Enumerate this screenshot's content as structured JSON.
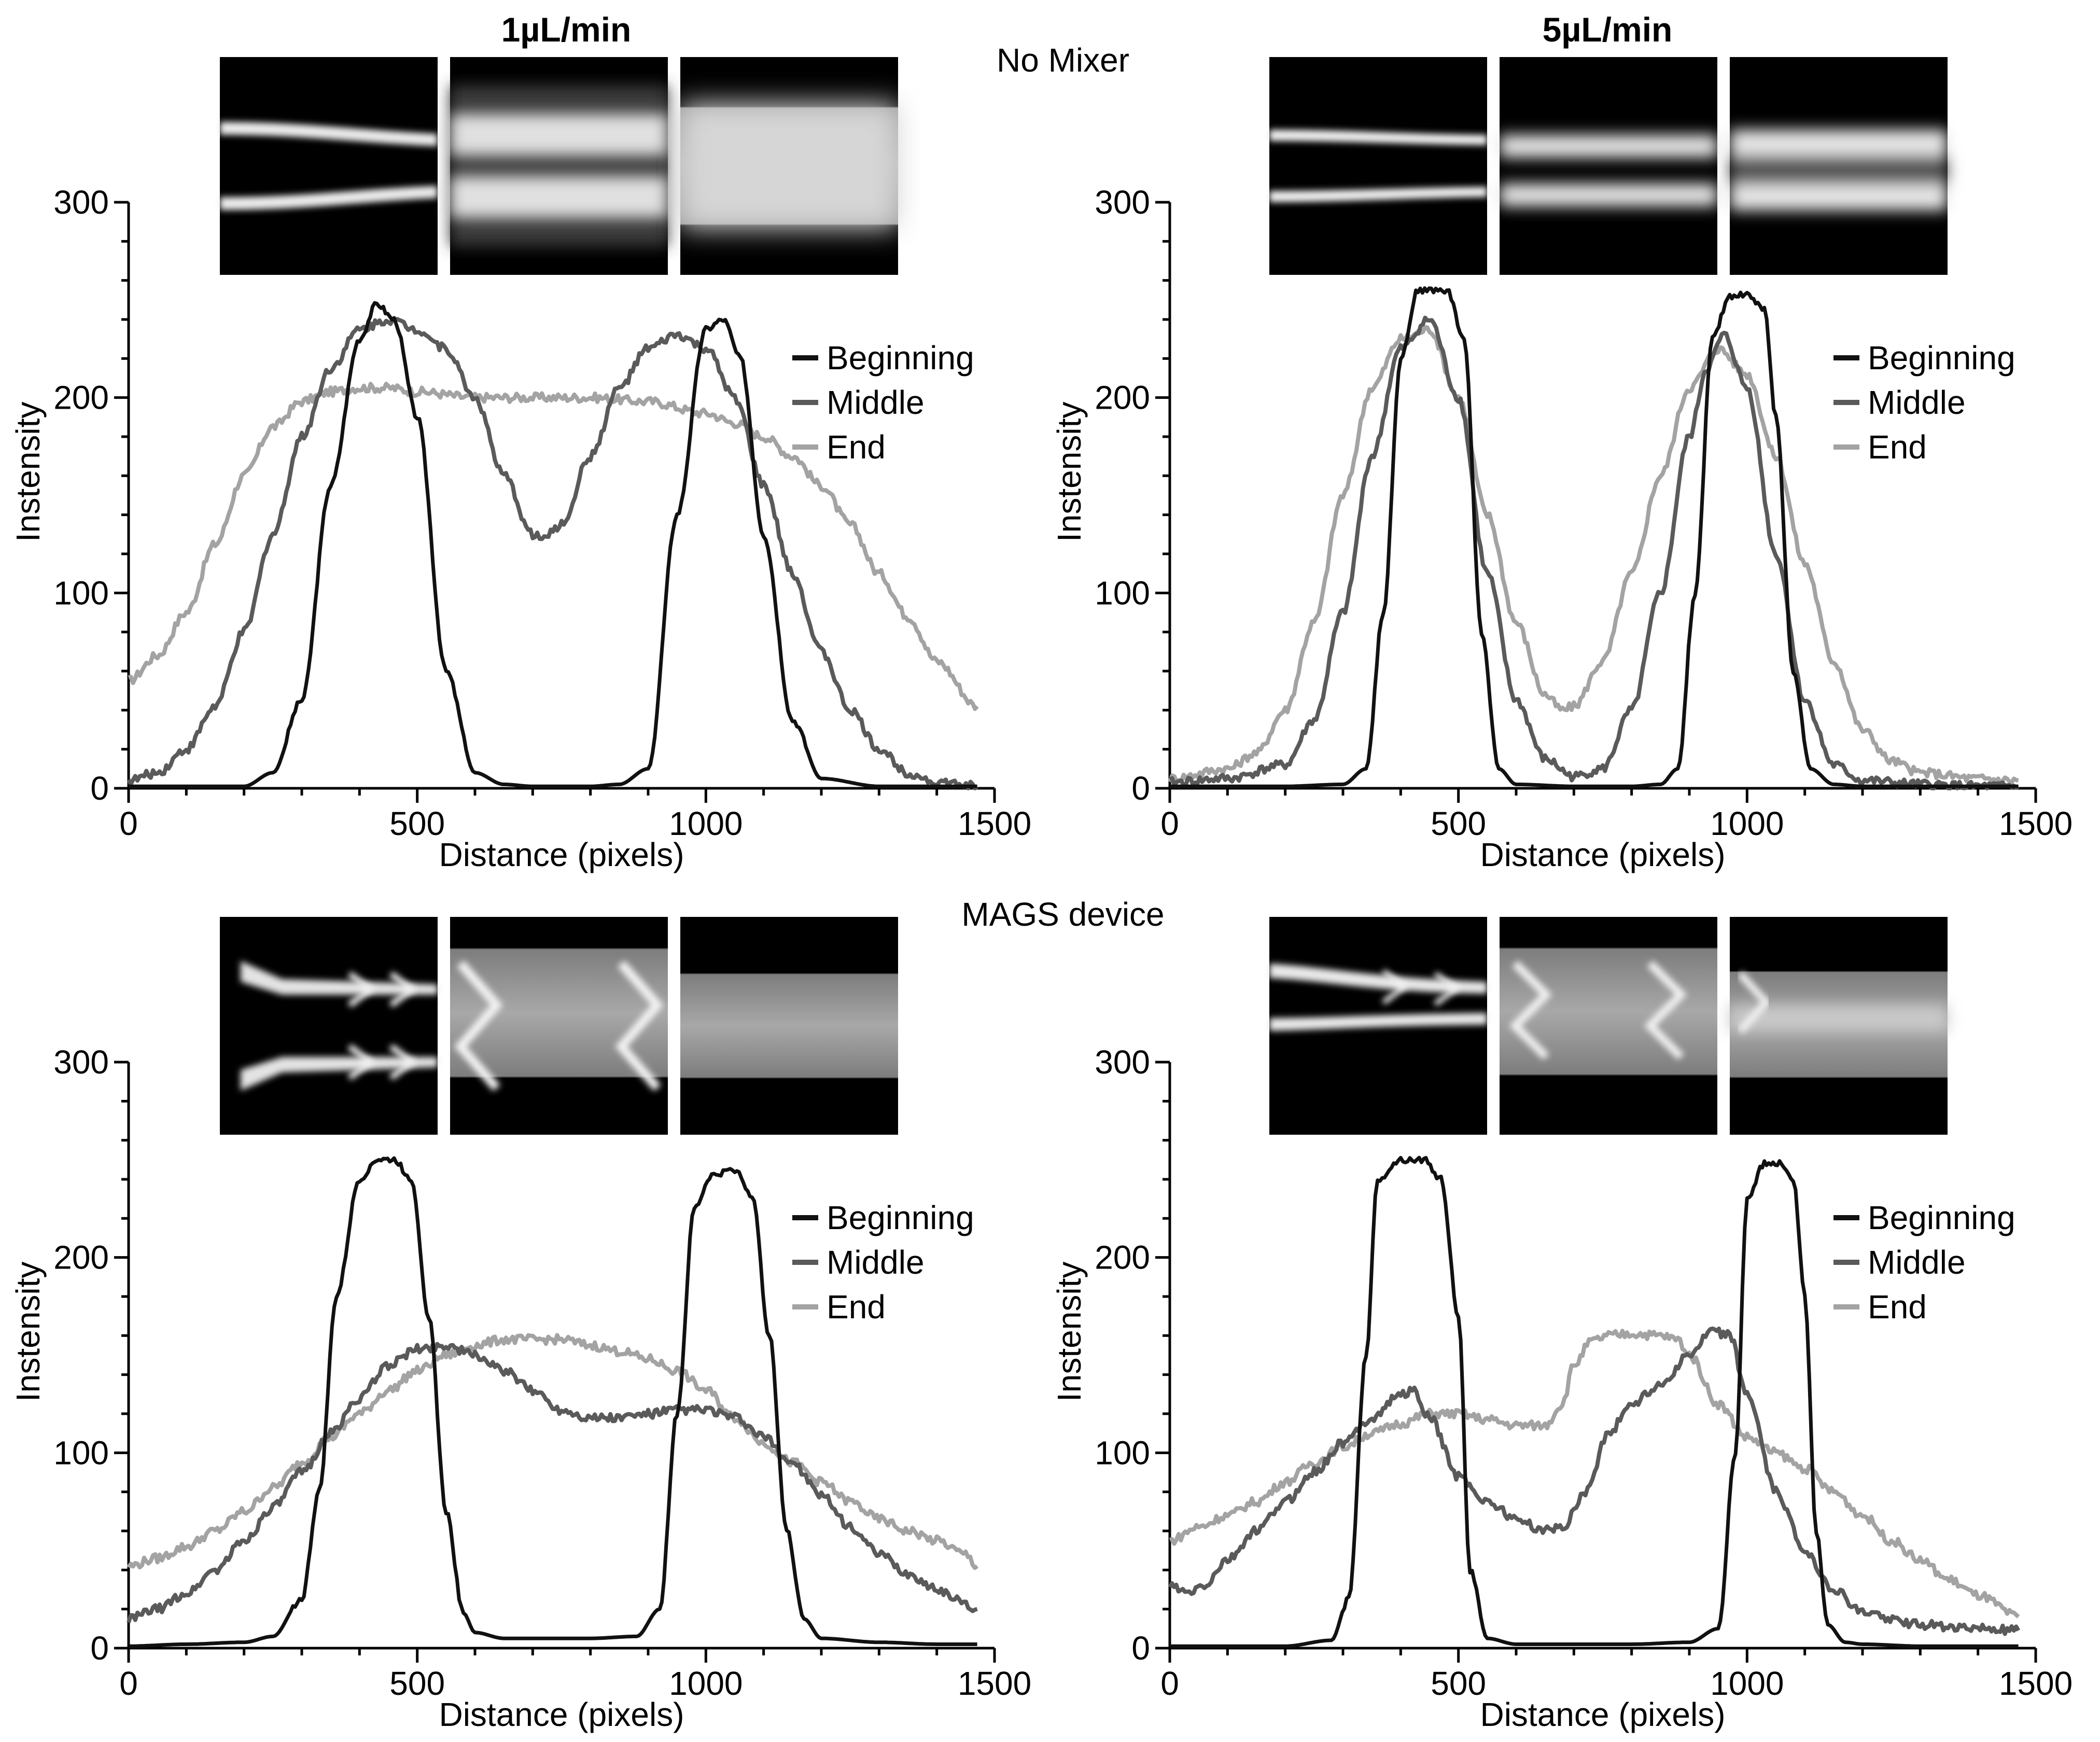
{
  "figure": {
    "col_titles": [
      "1µL/min",
      "5µL/min"
    ],
    "row_titles": [
      "No Mixer",
      "MAGS device"
    ],
    "colors": {
      "beginning": "#111111",
      "middle": "#5a5a5a",
      "end": "#a3a3a3",
      "background": "#ffffff"
    }
  },
  "chart_data": [
    {
      "type": "line",
      "panel": "top-left",
      "xlabel": "Distance (pixels)",
      "ylabel": "Instensity",
      "xlim": [
        0,
        1500
      ],
      "ylim": [
        0,
        300
      ],
      "xticks": [
        0,
        500,
        1000,
        1500
      ],
      "yticks": [
        0,
        100,
        200,
        300
      ],
      "legend_position": "upper-right",
      "insets": [
        "channel-image-beginning",
        "channel-image-middle",
        "channel-image-end"
      ],
      "series": [
        {
          "name": "Beginning",
          "color": "#111111",
          "x": [
            0,
            100,
            200,
            250,
            300,
            350,
            400,
            430,
            460,
            500,
            550,
            600,
            650,
            700,
            750,
            800,
            850,
            900,
            950,
            1000,
            1030,
            1060,
            1100,
            1150,
            1200,
            1300,
            1400,
            1470
          ],
          "y": [
            1,
            1,
            1,
            8,
            45,
            155,
            230,
            248,
            240,
            190,
            60,
            8,
            2,
            1,
            1,
            1,
            2,
            10,
            140,
            235,
            240,
            220,
            130,
            35,
            5,
            1,
            1,
            1
          ]
        },
        {
          "name": "Middle",
          "color": "#5a5a5a",
          "x": [
            0,
            50,
            100,
            150,
            200,
            250,
            300,
            350,
            400,
            450,
            500,
            550,
            600,
            650,
            700,
            720,
            750,
            800,
            850,
            900,
            950,
            1000,
            1050,
            1100,
            1150,
            1200,
            1250,
            1300,
            1350,
            1400,
            1470
          ],
          "y": [
            4,
            8,
            20,
            42,
            80,
            130,
            180,
            215,
            235,
            240,
            235,
            225,
            200,
            160,
            130,
            128,
            135,
            170,
            205,
            225,
            232,
            225,
            200,
            155,
            110,
            70,
            40,
            20,
            8,
            3,
            1
          ]
        },
        {
          "name": "End",
          "color": "#a3a3a3",
          "x": [
            0,
            50,
            100,
            150,
            200,
            250,
            300,
            350,
            400,
            450,
            500,
            600,
            700,
            800,
            900,
            1000,
            1050,
            1100,
            1150,
            1200,
            1250,
            1300,
            1350,
            1400,
            1470
          ],
          "y": [
            55,
            68,
            90,
            125,
            160,
            185,
            198,
            203,
            205,
            205,
            203,
            200,
            200,
            200,
            198,
            192,
            187,
            180,
            170,
            155,
            135,
            110,
            88,
            65,
            42
          ]
        }
      ]
    },
    {
      "type": "line",
      "panel": "top-right",
      "xlabel": "Distance (pixels)",
      "ylabel": "Instensity",
      "xlim": [
        0,
        1500
      ],
      "ylim": [
        0,
        300
      ],
      "xticks": [
        0,
        500,
        1000,
        1500
      ],
      "yticks": [
        0,
        100,
        200,
        300
      ],
      "legend_position": "upper-right",
      "insets": [
        "channel-image-beginning",
        "channel-image-middle",
        "channel-image-end"
      ],
      "series": [
        {
          "name": "Beginning",
          "color": "#111111",
          "x": [
            0,
            200,
            300,
            340,
            370,
            400,
            430,
            480,
            510,
            540,
            570,
            600,
            700,
            800,
            850,
            880,
            910,
            940,
            970,
            1000,
            1030,
            1050,
            1080,
            1110,
            1150,
            1200,
            1300,
            1470
          ],
          "y": [
            1,
            1,
            2,
            10,
            90,
            220,
            255,
            255,
            230,
            80,
            10,
            2,
            1,
            1,
            2,
            10,
            100,
            230,
            252,
            253,
            245,
            190,
            60,
            10,
            2,
            1,
            1,
            1
          ]
        },
        {
          "name": "Middle",
          "color": "#5a5a5a",
          "x": [
            0,
            100,
            200,
            250,
            300,
            350,
            400,
            450,
            500,
            550,
            600,
            650,
            700,
            750,
            800,
            850,
            900,
            930,
            960,
            1000,
            1050,
            1100,
            1150,
            1200,
            1300,
            1400,
            1470
          ],
          "y": [
            3,
            5,
            12,
            35,
            90,
            170,
            225,
            240,
            200,
            110,
            45,
            15,
            6,
            10,
            40,
            100,
            180,
            215,
            232,
            205,
            120,
            45,
            12,
            4,
            2,
            1,
            1
          ]
        },
        {
          "name": "End",
          "color": "#a3a3a3",
          "x": [
            0,
            100,
            150,
            200,
            250,
            300,
            350,
            400,
            450,
            500,
            550,
            600,
            650,
            680,
            700,
            750,
            800,
            850,
            900,
            950,
            1000,
            1050,
            1100,
            1150,
            1200,
            1250,
            1300,
            1400,
            1470
          ],
          "y": [
            5,
            10,
            18,
            40,
            85,
            150,
            205,
            230,
            235,
            200,
            140,
            85,
            48,
            40,
            42,
            65,
            110,
            160,
            205,
            225,
            212,
            170,
            115,
            65,
            30,
            14,
            8,
            5,
            4
          ]
        }
      ]
    },
    {
      "type": "line",
      "panel": "bottom-left",
      "xlabel": "Distance (pixels)",
      "ylabel": "Instensity",
      "xlim": [
        0,
        1500
      ],
      "ylim": [
        0,
        300
      ],
      "xticks": [
        0,
        500,
        1000,
        1500
      ],
      "yticks": [
        0,
        100,
        200,
        300
      ],
      "legend_position": "upper-right",
      "insets": [
        "channel-image-beginning",
        "channel-image-middle",
        "channel-image-end"
      ],
      "series": [
        {
          "name": "Beginning",
          "color": "#111111",
          "x": [
            0,
            100,
            200,
            250,
            300,
            330,
            360,
            400,
            430,
            460,
            490,
            520,
            550,
            580,
            600,
            650,
            700,
            800,
            880,
            920,
            950,
            980,
            1010,
            1050,
            1080,
            1110,
            1140,
            1170,
            1200,
            1300,
            1400,
            1470
          ],
          "y": [
            1,
            2,
            3,
            6,
            25,
            80,
            180,
            240,
            250,
            250,
            240,
            170,
            70,
            18,
            8,
            5,
            5,
            5,
            6,
            20,
            120,
            225,
            242,
            245,
            232,
            160,
            60,
            15,
            5,
            3,
            2,
            2
          ]
        },
        {
          "name": "Middle",
          "color": "#5a5a5a",
          "x": [
            0,
            50,
            100,
            150,
            200,
            250,
            300,
            350,
            400,
            450,
            500,
            550,
            600,
            650,
            700,
            750,
            800,
            850,
            900,
            950,
            1000,
            1050,
            1100,
            1150,
            1200,
            1250,
            1300,
            1350,
            1400,
            1470
          ],
          "y": [
            15,
            20,
            28,
            40,
            55,
            72,
            90,
            110,
            128,
            145,
            153,
            155,
            150,
            142,
            132,
            122,
            118,
            118,
            120,
            122,
            122,
            118,
            108,
            95,
            78,
            62,
            48,
            38,
            30,
            20
          ]
        },
        {
          "name": "End",
          "color": "#a3a3a3",
          "x": [
            0,
            50,
            100,
            150,
            200,
            250,
            300,
            350,
            400,
            450,
            500,
            550,
            600,
            650,
            700,
            750,
            800,
            850,
            900,
            950,
            1000,
            1050,
            1100,
            1150,
            1200,
            1250,
            1300,
            1350,
            1400,
            1450,
            1470
          ],
          "y": [
            42,
            46,
            52,
            60,
            70,
            82,
            95,
            108,
            120,
            132,
            142,
            150,
            155,
            158,
            158,
            158,
            155,
            152,
            148,
            142,
            132,
            118,
            105,
            95,
            85,
            75,
            66,
            60,
            55,
            48,
            42
          ]
        }
      ]
    },
    {
      "type": "line",
      "panel": "bottom-right",
      "xlabel": "Distance (pixels)",
      "ylabel": "Instensity",
      "xlim": [
        0,
        1500
      ],
      "ylim": [
        0,
        300
      ],
      "xticks": [
        0,
        500,
        1000,
        1500
      ],
      "yticks": [
        0,
        100,
        200,
        300
      ],
      "legend_position": "upper-right",
      "insets": [
        "channel-image-beginning",
        "channel-image-middle",
        "channel-image-end"
      ],
      "series": [
        {
          "name": "Beginning",
          "color": "#111111",
          "x": [
            0,
            200,
            280,
            310,
            340,
            360,
            400,
            440,
            470,
            500,
            520,
            550,
            600,
            700,
            800,
            900,
            950,
            980,
            1000,
            1030,
            1060,
            1080,
            1100,
            1120,
            1140,
            1170,
            1200,
            1300,
            1470
          ],
          "y": [
            1,
            1,
            4,
            25,
            150,
            240,
            250,
            250,
            240,
            170,
            40,
            5,
            2,
            2,
            2,
            3,
            10,
            100,
            230,
            248,
            248,
            240,
            180,
            60,
            12,
            3,
            2,
            1,
            1
          ]
        },
        {
          "name": "Middle",
          "color": "#5a5a5a",
          "x": [
            0,
            30,
            60,
            100,
            150,
            200,
            250,
            300,
            350,
            400,
            420,
            450,
            500,
            550,
            600,
            650,
            680,
            720,
            760,
            800,
            850,
            900,
            940,
            970,
            1000,
            1050,
            1100,
            1150,
            1200,
            1300,
            1400,
            1470
          ],
          "y": [
            32,
            28,
            32,
            45,
            60,
            75,
            90,
            105,
            118,
            130,
            132,
            118,
            88,
            75,
            66,
            60,
            62,
            80,
            110,
            125,
            135,
            150,
            162,
            160,
            130,
            80,
            50,
            30,
            18,
            12,
            10,
            9
          ]
        },
        {
          "name": "End",
          "color": "#a3a3a3",
          "x": [
            0,
            50,
            100,
            150,
            200,
            250,
            300,
            350,
            400,
            450,
            500,
            550,
            600,
            650,
            680,
            700,
            730,
            760,
            800,
            850,
            880,
            900,
            950,
            1000,
            1050,
            1100,
            1150,
            1200,
            1250,
            1300,
            1350,
            1400,
            1470
          ],
          "y": [
            55,
            62,
            68,
            75,
            85,
            95,
            103,
            110,
            115,
            120,
            120,
            117,
            114,
            114,
            125,
            145,
            157,
            160,
            161,
            160,
            158,
            150,
            125,
            108,
            100,
            92,
            80,
            68,
            55,
            45,
            35,
            27,
            16
          ]
        }
      ]
    }
  ]
}
